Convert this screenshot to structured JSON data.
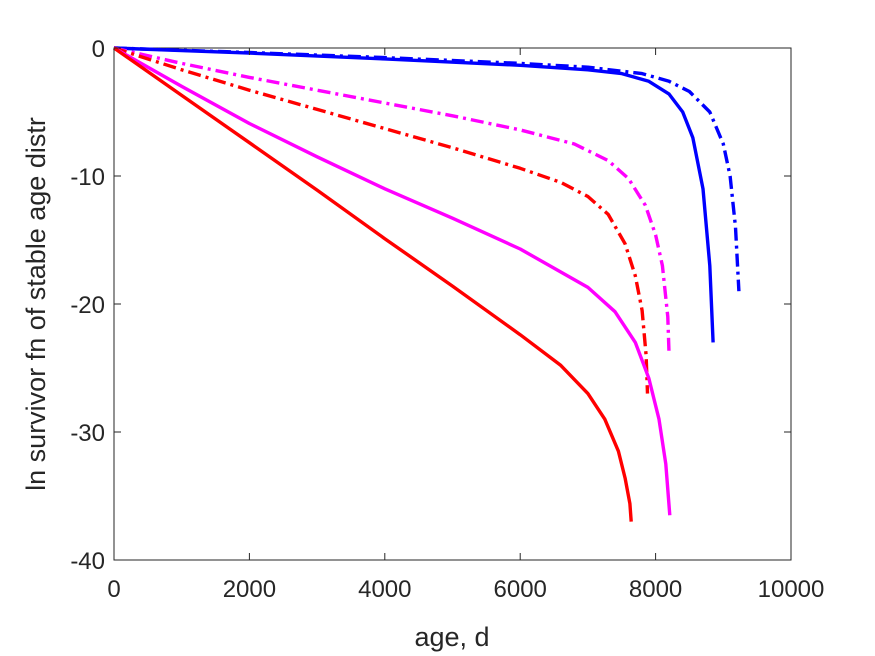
{
  "chart_data": {
    "type": "line",
    "title": "",
    "xlabel": "age, d",
    "ylabel": "ln survivor fn of stable age distr",
    "xlim": [
      0,
      10000
    ],
    "ylim": [
      -40,
      0
    ],
    "xticks": [
      0,
      2000,
      4000,
      6000,
      8000,
      10000
    ],
    "yticks": [
      0,
      -10,
      -20,
      -30,
      -40
    ],
    "xtick_labels": [
      "0",
      "2000",
      "4000",
      "6000",
      "8000",
      "10000"
    ],
    "ytick_labels": [
      "0",
      "-10",
      "-20",
      "-30",
      "-40"
    ],
    "grid": false,
    "legend": "none",
    "series": [
      {
        "color": "#0000ff",
        "style": "dashdot",
        "x": [
          0,
          2000,
          4000,
          6000,
          7000,
          7800,
          8200,
          8500,
          8800,
          9000,
          9100,
          9180,
          9230
        ],
        "y": [
          0,
          -0.35,
          -0.75,
          -1.2,
          -1.5,
          -2.0,
          -2.6,
          -3.4,
          -5.0,
          -7.5,
          -10.0,
          -14.0,
          -19.0
        ]
      },
      {
        "color": "#0000ff",
        "style": "solid",
        "x": [
          0,
          2000,
          4000,
          6000,
          7000,
          7500,
          7900,
          8200,
          8400,
          8550,
          8700,
          8800,
          8850
        ],
        "y": [
          0,
          -0.4,
          -0.85,
          -1.35,
          -1.7,
          -2.0,
          -2.6,
          -3.6,
          -5.0,
          -7.0,
          -11.0,
          -17.0,
          -23.0
        ]
      },
      {
        "color": "#ff00ff",
        "style": "dashdot",
        "x": [
          0,
          1000,
          2000,
          3000,
          4000,
          5000,
          6000,
          6800,
          7300,
          7600,
          7850,
          8000,
          8100,
          8180,
          8200
        ],
        "y": [
          0,
          -1.2,
          -2.3,
          -3.3,
          -4.3,
          -5.3,
          -6.4,
          -7.5,
          -8.8,
          -10.2,
          -12.3,
          -14.6,
          -17.0,
          -21.0,
          -24.0
        ]
      },
      {
        "color": "#ff0000",
        "style": "dashdot",
        "x": [
          0,
          1000,
          2000,
          3000,
          4000,
          5000,
          6000,
          6600,
          7000,
          7300,
          7550,
          7700,
          7800,
          7860,
          7880
        ],
        "y": [
          0,
          -1.7,
          -3.3,
          -4.8,
          -6.3,
          -7.8,
          -9.4,
          -10.5,
          -11.6,
          -13.0,
          -15.3,
          -17.8,
          -20.5,
          -24.0,
          -27.0
        ]
      },
      {
        "color": "#ff00ff",
        "style": "solid",
        "x": [
          0,
          1000,
          2000,
          3000,
          4000,
          5000,
          6000,
          7000,
          7400,
          7700,
          7900,
          8050,
          8150,
          8210
        ],
        "y": [
          0,
          -3.0,
          -5.9,
          -8.5,
          -11.0,
          -13.3,
          -15.7,
          -18.7,
          -20.6,
          -23.0,
          -25.8,
          -29.0,
          -32.5,
          -36.5
        ]
      },
      {
        "color": "#ff0000",
        "style": "solid",
        "x": [
          0,
          1000,
          2000,
          3000,
          4000,
          5000,
          6000,
          6600,
          7000,
          7250,
          7450,
          7550,
          7620,
          7640
        ],
        "y": [
          0,
          -3.7,
          -7.4,
          -11.1,
          -14.9,
          -18.6,
          -22.4,
          -24.8,
          -27.0,
          -29.0,
          -31.5,
          -33.6,
          -35.6,
          -37.0
        ]
      }
    ]
  }
}
